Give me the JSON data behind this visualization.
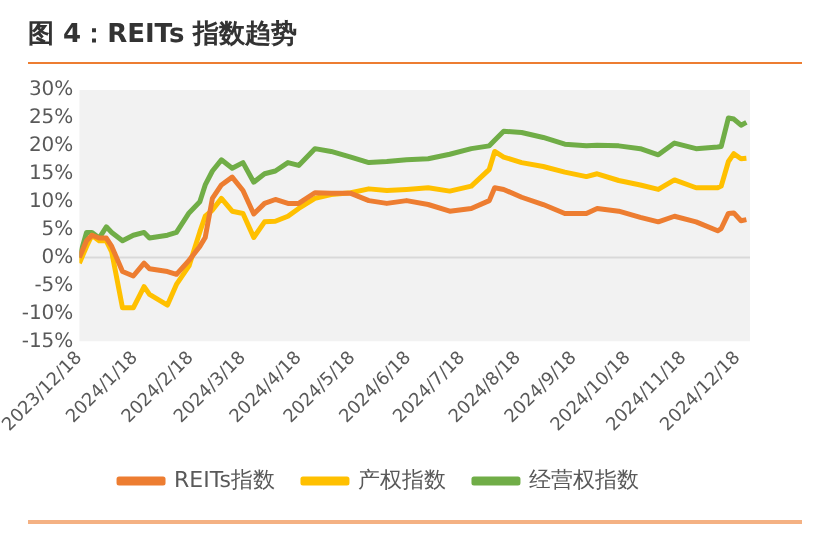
{
  "chart_data": {
    "type": "line",
    "title": "图 4：REITs 指数趋势",
    "x": [
      "2023-12-18",
      "2023-12-22",
      "2023-12-25",
      "2023-12-29",
      "2024-01-02",
      "2024-01-05",
      "2024-01-11",
      "2024-01-17",
      "2024-01-23",
      "2024-01-26",
      "2024-02-05",
      "2024-02-10",
      "2024-02-17",
      "2024-02-23",
      "2024-02-26",
      "2024-03-01",
      "2024-03-06",
      "2024-03-12",
      "2024-03-18",
      "2024-03-24",
      "2024-03-30",
      "2024-04-05",
      "2024-04-12",
      "2024-04-18",
      "2024-04-27",
      "2024-05-06",
      "2024-05-17",
      "2024-05-27",
      "2024-06-06",
      "2024-06-17",
      "2024-06-29",
      "2024-07-11",
      "2024-07-23",
      "2024-08-02",
      "2024-08-05",
      "2024-08-10",
      "2024-08-20",
      "2024-09-01",
      "2024-09-13",
      "2024-09-25",
      "2024-10-01",
      "2024-10-13",
      "2024-10-25",
      "2024-11-04",
      "2024-11-13",
      "2024-11-25",
      "2024-12-07",
      "2024-12-09",
      "2024-12-13",
      "2024-12-16",
      "2024-12-20",
      "2024-12-23"
    ],
    "series": [
      {
        "name": "REITs指数",
        "color": "#ed7d31",
        "values": [
          0,
          3,
          4,
          3.5,
          3.5,
          2,
          -2.5,
          -3.3,
          -1,
          -2,
          -2.5,
          -3,
          -0.5,
          2,
          3.6,
          10.6,
          13,
          14.4,
          12,
          7.8,
          9.7,
          10.4,
          9.7,
          9.7,
          11.6,
          11.5,
          11.5,
          10.2,
          9.7,
          10.2,
          9.5,
          8.3,
          8.8,
          10.2,
          12.5,
          12.2,
          10.8,
          9.5,
          7.9,
          7.9,
          8.8,
          8.3,
          7.2,
          6.4,
          7.4,
          6.4,
          4.8,
          5.2,
          7.9,
          8,
          6.6,
          6.8
        ]
      },
      {
        "name": "产权指数",
        "color": "#ffc000",
        "values": [
          -1,
          2,
          4,
          3,
          3,
          1,
          -9,
          -9,
          -5.2,
          -6.6,
          -8.5,
          -4.8,
          -1.5,
          4.6,
          7.4,
          8.5,
          10.6,
          8.3,
          7.9,
          3.6,
          6.4,
          6.5,
          7.4,
          8.8,
          10.6,
          11.3,
          11.6,
          12.3,
          12,
          12.2,
          12.5,
          11.9,
          12.8,
          15.8,
          19,
          18,
          17,
          16.3,
          15.3,
          14.5,
          15,
          13.8,
          13,
          12.2,
          13.9,
          12.5,
          12.5,
          12.8,
          17.2,
          18.6,
          17.7,
          17.8
        ]
      },
      {
        "name": "经营权指数",
        "color": "#70ad47",
        "values": [
          0,
          4.5,
          4.5,
          3.5,
          5.5,
          4.5,
          3,
          4,
          4.5,
          3.5,
          4,
          4.5,
          8,
          10,
          13,
          15.5,
          17.5,
          16,
          17,
          13.5,
          15,
          15.5,
          17,
          16.5,
          19.5,
          19,
          18,
          17,
          17.2,
          17.5,
          17.7,
          18.5,
          19.5,
          20,
          21,
          22.6,
          22.4,
          21.5,
          20.3,
          20,
          20.1,
          20,
          19.5,
          18.4,
          20.5,
          19.5,
          19.8,
          19.9,
          25,
          24.8,
          23.7,
          24.2
        ]
      }
    ],
    "xlim": [
      "2023-12-18",
      "2024-12-25"
    ],
    "xticks": [
      {
        "value": "2023-12-18",
        "label": "2023/12/18"
      },
      {
        "value": "2024-01-18",
        "label": "2024/1/18"
      },
      {
        "value": "2024-02-18",
        "label": "2024/2/18"
      },
      {
        "value": "2024-03-18",
        "label": "2024/3/18"
      },
      {
        "value": "2024-04-18",
        "label": "2024/4/18"
      },
      {
        "value": "2024-05-18",
        "label": "2024/5/18"
      },
      {
        "value": "2024-06-18",
        "label": "2024/6/18"
      },
      {
        "value": "2024-07-18",
        "label": "2024/7/18"
      },
      {
        "value": "2024-08-18",
        "label": "2024/8/18"
      },
      {
        "value": "2024-09-18",
        "label": "2024/9/18"
      },
      {
        "value": "2024-10-18",
        "label": "2024/10/18"
      },
      {
        "value": "2024-11-18",
        "label": "2024/11/18"
      },
      {
        "value": "2024-12-18",
        "label": "2024/12/18"
      }
    ],
    "ylim": [
      -15,
      30
    ],
    "yticks": [
      {
        "value": -15,
        "label": "-15%"
      },
      {
        "value": -10,
        "label": "-10%"
      },
      {
        "value": -5,
        "label": "-5%"
      },
      {
        "value": 0,
        "label": "0%"
      },
      {
        "value": 5,
        "label": "5%"
      },
      {
        "value": 10,
        "label": "10%"
      },
      {
        "value": 15,
        "label": "15%"
      },
      {
        "value": 20,
        "label": "20%"
      },
      {
        "value": 25,
        "label": "25%"
      },
      {
        "value": 30,
        "label": "30%"
      }
    ],
    "ref_lines": [
      {
        "axis": "y",
        "value": 0,
        "color": "#d9d9d9"
      }
    ],
    "grid": false,
    "legend": "bottom",
    "marker": "none",
    "line_style": "solid"
  }
}
